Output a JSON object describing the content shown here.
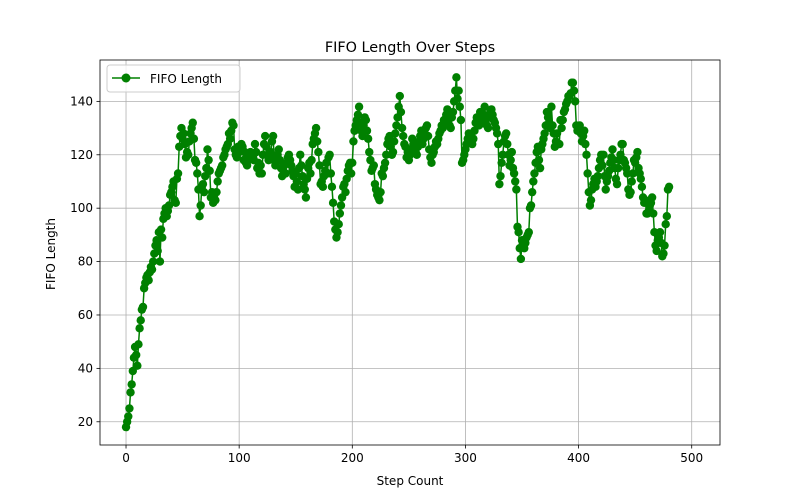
{
  "chart_data": {
    "type": "line",
    "title": "FIFO Length Over Steps",
    "xlabel": "Step Count",
    "ylabel": "FIFO Length",
    "xlim": [
      -23,
      525
    ],
    "ylim": [
      11.3,
      155.5
    ],
    "xticks": [
      0,
      100,
      200,
      300,
      400,
      500
    ],
    "yticks": [
      20,
      40,
      60,
      80,
      100,
      120,
      140
    ],
    "grid": true,
    "legend_position": "top-left",
    "series": [
      {
        "name": "FIFO Length",
        "color": "#008000",
        "marker": "circle",
        "x_start": 0,
        "x_step": 1,
        "values": [
          18,
          20,
          22,
          25,
          31,
          34,
          39,
          44,
          48,
          45,
          41,
          49,
          55,
          58,
          62,
          63,
          70,
          72,
          74,
          75,
          73,
          76,
          78,
          77,
          80,
          83,
          86,
          88,
          84,
          91,
          80,
          92,
          89,
          96,
          98,
          100,
          97,
          99,
          101,
          105,
          106,
          108,
          110,
          103,
          102,
          111,
          113,
          123,
          127,
          130,
          126,
          128,
          124,
          119,
          121,
          120,
          125,
          128,
          130,
          132,
          126,
          118,
          117,
          113,
          107,
          97,
          101,
          108,
          109,
          106,
          112,
          115,
          122,
          118,
          114,
          104,
          106,
          102,
          105,
          103,
          106,
          110,
          113,
          114,
          115,
          116,
          119,
          120,
          122,
          123,
          124,
          128,
          126,
          129,
          132,
          131,
          122,
          120,
          119,
          123,
          121,
          122,
          124,
          123,
          118,
          121,
          117,
          116,
          118,
          119,
          121,
          120,
          119,
          118,
          124,
          121,
          115,
          117,
          113,
          116,
          113,
          120,
          124,
          127,
          123,
          120,
          118,
          119,
          121,
          125,
          127,
          118,
          116,
          119,
          120,
          122,
          118,
          115,
          112,
          114,
          116,
          113,
          117,
          119,
          120,
          118,
          116,
          114,
          112,
          108,
          113,
          110,
          107,
          115,
          120,
          116,
          112,
          109,
          107,
          104,
          111,
          115,
          117,
          113,
          118,
          124,
          126,
          128,
          130,
          125,
          121,
          116,
          109,
          110,
          108,
          112,
          114,
          117,
          113,
          119,
          120,
          113,
          108,
          102,
          95,
          92,
          89,
          91,
          94,
          98,
          101,
          104,
          108,
          109,
          106,
          111,
          114,
          116,
          117,
          113,
          117,
          125,
          129,
          131,
          133,
          135,
          138,
          132,
          129,
          127,
          131,
          134,
          133,
          129,
          126,
          121,
          118,
          114,
          115,
          116,
          109,
          107,
          105,
          104,
          103,
          106,
          113,
          112,
          115,
          117,
          120,
          124,
          126,
          127,
          123,
          120,
          121,
          125,
          128,
          131,
          134,
          138,
          142,
          136,
          130,
          127,
          124,
          123,
          119,
          121,
          118,
          120,
          122,
          126,
          124,
          122,
          121,
          120,
          123,
          125,
          127,
          129,
          124,
          126,
          128,
          130,
          131,
          127,
          122,
          119,
          117,
          120,
          121,
          123,
          125,
          124,
          126,
          128,
          129,
          131,
          130,
          133,
          132,
          135,
          137,
          133,
          131,
          130,
          134,
          136,
          140,
          144,
          149,
          141,
          144,
          138,
          133,
          117,
          118,
          120,
          122,
          124,
          126,
          128,
          127,
          125,
          124,
          126,
          129,
          132,
          134,
          133,
          131,
          136,
          134,
          132,
          135,
          138,
          133,
          131,
          130,
          134,
          136,
          137,
          135,
          133,
          132,
          130,
          128,
          124,
          109,
          112,
          117,
          120,
          125,
          127,
          128,
          124,
          120,
          116,
          118,
          121,
          115,
          113,
          110,
          107,
          93,
          91,
          85,
          81,
          88,
          86,
          85,
          87,
          89,
          90,
          91,
          100,
          101,
          106,
          110,
          113,
          117,
          121,
          123,
          118,
          115,
          122,
          124,
          126,
          128,
          131,
          136,
          134,
          132,
          130,
          138,
          131,
          128,
          123,
          125,
          128,
          124,
          124,
          133,
          130,
          133,
          136,
          137,
          139,
          140,
          142,
          142,
          143,
          147,
          147,
          144,
          140,
          131,
          129,
          130,
          131,
          128,
          125,
          127,
          129,
          124,
          120,
          113,
          106,
          101,
          103,
          107,
          109,
          111,
          108,
          110,
          112,
          115,
          118,
          120,
          116,
          120,
          112,
          107,
          110,
          112,
          114,
          117,
          119,
          122,
          118,
          115,
          111,
          109,
          115,
          118,
          120,
          124,
          124,
          118,
          117,
          115,
          113,
          107,
          105,
          106,
          110,
          113,
          118,
          117,
          119,
          121,
          115,
          113,
          111,
          108,
          104,
          102,
          103,
          98,
          98,
          99,
          101,
          102,
          104,
          98,
          91,
          86,
          84,
          88,
          89,
          91,
          87,
          82,
          83,
          86,
          94,
          97,
          107,
          108
        ]
      }
    ]
  }
}
